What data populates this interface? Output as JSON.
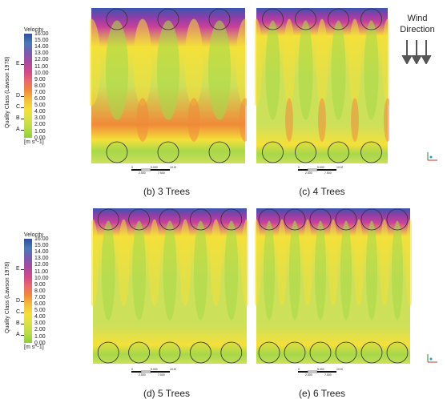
{
  "legend": {
    "title": "Velocity",
    "ticks": [
      "16.00",
      "15.00",
      "14.00",
      "13.00",
      "12.00",
      "11.00",
      "10.00",
      "9.00",
      "8.00",
      "7.00",
      "6.00",
      "5.00",
      "4.00",
      "3.00",
      "2.00",
      "1.00",
      "0.00"
    ],
    "unit": "[m s^-1]",
    "quality_label": "Quality Class (Lawson 1978)",
    "classes": [
      "E",
      "D",
      "C",
      "B",
      "A"
    ]
  },
  "panels": [
    {
      "caption": "(b)  3 Trees",
      "trees": 3
    },
    {
      "caption": "(c) 4 Trees",
      "trees": 4
    },
    {
      "caption": "(d) 5 Trees",
      "trees": 5
    },
    {
      "caption": "(e) 6 Trees",
      "trees": 6
    }
  ],
  "wind": {
    "line1": "Wind",
    "line2": "Direction"
  },
  "scalebar": {
    "top": [
      "0",
      "5.000",
      "10.000 (m)"
    ],
    "bottom": [
      "2.500",
      "7.500"
    ]
  },
  "colors": {
    "blue": "#3a56b0",
    "purple": "#8a3fa8",
    "magenta": "#c83f9a",
    "orange": "#f08a3a",
    "yellow": "#f4e03a",
    "lightgreen": "#cde05a",
    "green": "#a8d84a"
  }
}
